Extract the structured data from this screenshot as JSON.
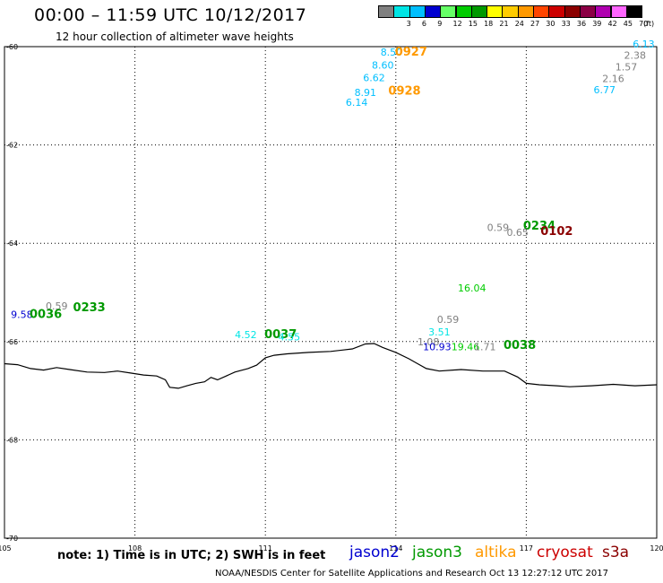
{
  "header": {
    "title": "00:00 – 11:59 UTC 10/12/2017",
    "subtitle": "12 hour collection of altimeter wave heights"
  },
  "legend": {
    "unit": "(ft)",
    "swatches": [
      {
        "color": "#808080",
        "label": ""
      },
      {
        "color": "#00e5e5",
        "label": "3"
      },
      {
        "color": "#00bfff",
        "label": "6"
      },
      {
        "color": "#0000d0",
        "label": "9"
      },
      {
        "color": "#66ff66",
        "label": "12"
      },
      {
        "color": "#00cc00",
        "label": "15"
      },
      {
        "color": "#009900",
        "label": "18"
      },
      {
        "color": "#ffff00",
        "label": "21"
      },
      {
        "color": "#ffcc00",
        "label": "24"
      },
      {
        "color": "#ff9900",
        "label": "27"
      },
      {
        "color": "#ff4500",
        "label": "30"
      },
      {
        "color": "#cc0000",
        "label": "33"
      },
      {
        "color": "#8b0000",
        "label": "36"
      },
      {
        "color": "#8b0045",
        "label": "39"
      },
      {
        "color": "#b000b0",
        "label": "42"
      },
      {
        "color": "#ff66ff",
        "label": "45"
      },
      {
        "color": "#000000",
        "label": "70"
      }
    ]
  },
  "map": {
    "lon_range": [
      105,
      120
    ],
    "lat_range": [
      -70,
      -60
    ],
    "lon_ticks": [
      "105",
      "108",
      "111",
      "114",
      "117",
      "120"
    ],
    "lat_ticks": [
      "-60",
      "-62",
      "-64",
      "-66",
      "-68",
      "-70"
    ],
    "grid": "dotted",
    "coastline": [
      [
        105.0,
        -66.45
      ],
      [
        105.3,
        -66.47
      ],
      [
        105.6,
        -66.55
      ],
      [
        105.9,
        -66.58
      ],
      [
        106.2,
        -66.53
      ],
      [
        106.5,
        -66.57
      ],
      [
        106.9,
        -66.62
      ],
      [
        107.3,
        -66.63
      ],
      [
        107.6,
        -66.6
      ],
      [
        107.9,
        -66.64
      ],
      [
        108.2,
        -66.68
      ],
      [
        108.5,
        -66.7
      ],
      [
        108.7,
        -66.78
      ],
      [
        108.8,
        -66.93
      ],
      [
        109.0,
        -66.95
      ],
      [
        109.2,
        -66.9
      ],
      [
        109.4,
        -66.85
      ],
      [
        109.6,
        -66.82
      ],
      [
        109.75,
        -66.73
      ],
      [
        109.9,
        -66.78
      ],
      [
        110.1,
        -66.7
      ],
      [
        110.3,
        -66.62
      ],
      [
        110.6,
        -66.55
      ],
      [
        110.8,
        -66.48
      ],
      [
        111.0,
        -66.33
      ],
      [
        111.2,
        -66.28
      ],
      [
        111.5,
        -66.25
      ],
      [
        112.0,
        -66.22
      ],
      [
        112.5,
        -66.2
      ],
      [
        113.0,
        -66.15
      ],
      [
        113.3,
        -66.05
      ],
      [
        113.5,
        -66.04
      ],
      [
        113.7,
        -66.12
      ],
      [
        114.0,
        -66.22
      ],
      [
        114.3,
        -66.35
      ],
      [
        114.5,
        -66.45
      ],
      [
        114.7,
        -66.55
      ],
      [
        115.0,
        -66.6
      ],
      [
        115.5,
        -66.57
      ],
      [
        116.0,
        -66.6
      ],
      [
        116.5,
        -66.6
      ],
      [
        116.8,
        -66.72
      ],
      [
        117.0,
        -66.85
      ],
      [
        117.3,
        -66.88
      ],
      [
        117.7,
        -66.9
      ],
      [
        118.0,
        -66.92
      ],
      [
        118.5,
        -66.9
      ],
      [
        119.0,
        -66.87
      ],
      [
        119.5,
        -66.9
      ],
      [
        120.0,
        -66.88
      ]
    ],
    "observations": [
      {
        "text": "8.50",
        "lon": 113.9,
        "lat": -60.18,
        "color": "#00bfff",
        "size": 11
      },
      {
        "text": "0927",
        "lon": 114.35,
        "lat": -60.18,
        "color": "#ff9900",
        "size": 13
      },
      {
        "text": "8.60",
        "lon": 113.7,
        "lat": -60.45,
        "color": "#00bfff",
        "size": 11
      },
      {
        "text": "6.62",
        "lon": 113.5,
        "lat": -60.7,
        "color": "#00bfff",
        "size": 11
      },
      {
        "text": "8.91",
        "lon": 113.3,
        "lat": -61.0,
        "color": "#00bfff",
        "size": 11
      },
      {
        "text": "0928",
        "lon": 114.2,
        "lat": -60.98,
        "color": "#ff9900",
        "size": 13
      },
      {
        "text": "6.14",
        "lon": 113.1,
        "lat": -61.2,
        "color": "#00bfff",
        "size": 11
      },
      {
        "text": "6.13",
        "lon": 119.7,
        "lat": -60.02,
        "color": "#00bfff",
        "size": 11
      },
      {
        "text": "2.38",
        "lon": 119.5,
        "lat": -60.25,
        "color": "#808080",
        "size": 11
      },
      {
        "text": "1.57",
        "lon": 119.3,
        "lat": -60.48,
        "color": "#808080",
        "size": 11
      },
      {
        "text": "2.16",
        "lon": 119.0,
        "lat": -60.72,
        "color": "#808080",
        "size": 11
      },
      {
        "text": "6.77",
        "lon": 118.8,
        "lat": -60.95,
        "color": "#00bfff",
        "size": 11
      },
      {
        "text": "0.59",
        "lon": 116.35,
        "lat": -63.75,
        "color": "#808080",
        "size": 11
      },
      {
        "text": "0234",
        "lon": 117.3,
        "lat": -63.72,
        "color": "#009900",
        "size": 13
      },
      {
        "text": "0.65",
        "lon": 116.8,
        "lat": -63.85,
        "color": "#808080",
        "size": 11
      },
      {
        "text": "0102",
        "lon": 117.7,
        "lat": -63.83,
        "color": "#8b0000",
        "size": 13
      },
      {
        "text": "16.04",
        "lon": 115.75,
        "lat": -64.98,
        "color": "#00cc00",
        "size": 11
      },
      {
        "text": "0.59",
        "lon": 106.2,
        "lat": -65.35,
        "color": "#808080",
        "size": 11
      },
      {
        "text": "0233",
        "lon": 106.95,
        "lat": -65.38,
        "color": "#009900",
        "size": 13
      },
      {
        "text": "9.58",
        "lon": 105.4,
        "lat": -65.52,
        "color": "#0000d0",
        "size": 11
      },
      {
        "text": "0036",
        "lon": 105.95,
        "lat": -65.52,
        "color": "#009900",
        "size": 13
      },
      {
        "text": "0.59",
        "lon": 115.2,
        "lat": -65.62,
        "color": "#808080",
        "size": 11
      },
      {
        "text": "3.51",
        "lon": 115.0,
        "lat": -65.88,
        "color": "#00e5e5",
        "size": 11
      },
      {
        "text": "4.52",
        "lon": 110.55,
        "lat": -65.93,
        "color": "#00e5e5",
        "size": 11
      },
      {
        "text": "0037",
        "lon": 111.35,
        "lat": -65.93,
        "color": "#009900",
        "size": 13
      },
      {
        "text": "4.55",
        "lon": 111.55,
        "lat": -65.98,
        "color": "#00e5e5",
        "size": 11
      },
      {
        "text": "1.08",
        "lon": 114.75,
        "lat": -66.08,
        "color": "#808080",
        "size": 11
      },
      {
        "text": "10.93",
        "lon": 114.95,
        "lat": -66.18,
        "color": "#0000d0",
        "size": 11
      },
      {
        "text": "19.46",
        "lon": 115.6,
        "lat": -66.18,
        "color": "#00cc00",
        "size": 11
      },
      {
        "text": "1.71",
        "lon": 116.05,
        "lat": -66.18,
        "color": "#808080",
        "size": 11
      },
      {
        "text": "0038",
        "lon": 116.85,
        "lat": -66.15,
        "color": "#009900",
        "size": 13
      }
    ]
  },
  "footer": {
    "note": "note: 1) Time is in UTC; 2) SWH is in feet",
    "satellites": [
      {
        "name": "jason2",
        "color": "#0000d0"
      },
      {
        "name": "jason3",
        "color": "#009900"
      },
      {
        "name": "altika",
        "color": "#ff9900"
      },
      {
        "name": "cryosat",
        "color": "#cc0000"
      },
      {
        "name": "s3a",
        "color": "#8b0000"
      }
    ],
    "credit": "NOAA/NESDIS Center for Satellite Applications and Research    Oct 13 12:27:12 UTC 2017"
  }
}
